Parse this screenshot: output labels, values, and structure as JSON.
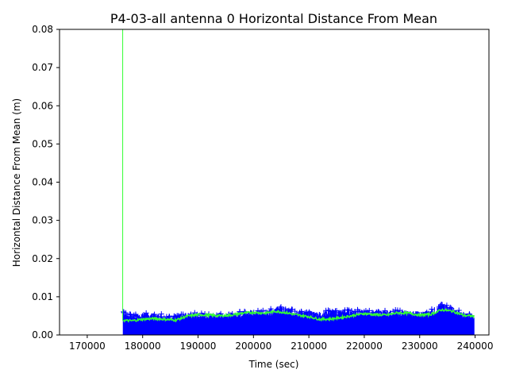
{
  "chart_data": {
    "type": "scatter",
    "title": "P4-03-all antenna 0 Horizontal Distance From Mean",
    "xlabel": "Time (sec)",
    "ylabel": "Horizontal Distance From Mean (m)",
    "xlim": [
      165000,
      242500
    ],
    "ylim": [
      0,
      0.08
    ],
    "x_ticks": [
      "170000",
      "180000",
      "190000",
      "200000",
      "210000",
      "220000",
      "230000",
      "240000"
    ],
    "y_ticks": [
      "0.00",
      "0.01",
      "0.02",
      "0.03",
      "0.04",
      "0.05",
      "0.06",
      "0.07",
      "0.08"
    ],
    "grid": false,
    "colors": {
      "points": "#0000ff",
      "mean_line": "#33ff33"
    },
    "series": [
      {
        "marker": "+",
        "color": "#0000ff",
        "x_range": [
          176500,
          239800
        ],
        "y_range": [
          0,
          0.009
        ],
        "upper_envelope": [
          [
            176500,
            0.0065
          ],
          [
            178000,
            0.0052
          ],
          [
            180000,
            0.0058
          ],
          [
            182000,
            0.0057
          ],
          [
            184000,
            0.0054
          ],
          [
            186000,
            0.0052
          ],
          [
            188000,
            0.0058
          ],
          [
            190000,
            0.0058
          ],
          [
            192000,
            0.0056
          ],
          [
            194000,
            0.0056
          ],
          [
            196000,
            0.0058
          ],
          [
            198000,
            0.0062
          ],
          [
            200000,
            0.0063
          ],
          [
            202000,
            0.0066
          ],
          [
            204000,
            0.0072
          ],
          [
            206000,
            0.0075
          ],
          [
            208000,
            0.0062
          ],
          [
            210000,
            0.0064
          ],
          [
            212000,
            0.0062
          ],
          [
            214000,
            0.0066
          ],
          [
            216000,
            0.0068
          ],
          [
            218000,
            0.0072
          ],
          [
            220000,
            0.0064
          ],
          [
            222000,
            0.0068
          ],
          [
            224000,
            0.0064
          ],
          [
            226000,
            0.0066
          ],
          [
            228000,
            0.0064
          ],
          [
            230000,
            0.0062
          ],
          [
            232000,
            0.0066
          ],
          [
            234000,
            0.0088
          ],
          [
            236000,
            0.0072
          ],
          [
            238000,
            0.0058
          ],
          [
            239800,
            0.0055
          ]
        ]
      },
      {
        "type": "line",
        "color": "#33ff33",
        "spike": {
          "x": 176400,
          "y_from": 0.0038,
          "y_to": 0.08
        },
        "points": [
          [
            176500,
            0.0038
          ],
          [
            178000,
            0.0037
          ],
          [
            180000,
            0.0041
          ],
          [
            182000,
            0.0043
          ],
          [
            184000,
            0.0041
          ],
          [
            186000,
            0.0039
          ],
          [
            188000,
            0.0049
          ],
          [
            190000,
            0.0053
          ],
          [
            192000,
            0.0052
          ],
          [
            194000,
            0.005
          ],
          [
            196000,
            0.0052
          ],
          [
            198000,
            0.0057
          ],
          [
            200000,
            0.0059
          ],
          [
            202000,
            0.0057
          ],
          [
            204000,
            0.0062
          ],
          [
            206000,
            0.0058
          ],
          [
            208000,
            0.0052
          ],
          [
            210000,
            0.0048
          ],
          [
            212000,
            0.0041
          ],
          [
            214000,
            0.0042
          ],
          [
            216000,
            0.0046
          ],
          [
            218000,
            0.0051
          ],
          [
            220000,
            0.0056
          ],
          [
            222000,
            0.0053
          ],
          [
            224000,
            0.0052
          ],
          [
            226000,
            0.0058
          ],
          [
            228000,
            0.0057
          ],
          [
            230000,
            0.0052
          ],
          [
            232000,
            0.0054
          ],
          [
            234000,
            0.0066
          ],
          [
            236000,
            0.0062
          ],
          [
            238000,
            0.0051
          ],
          [
            239800,
            0.0049
          ]
        ]
      }
    ]
  }
}
